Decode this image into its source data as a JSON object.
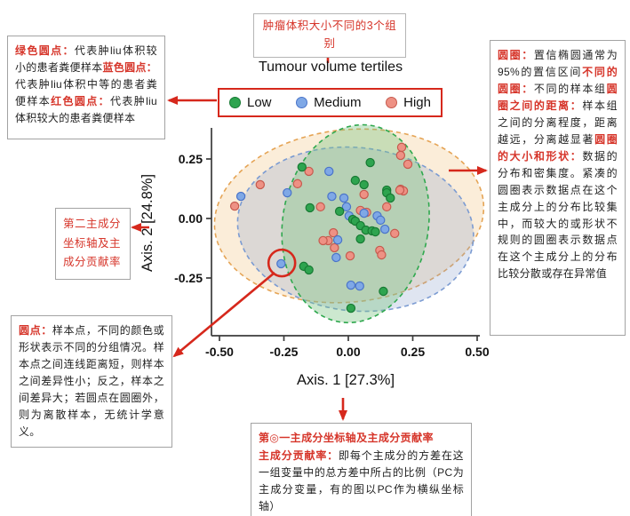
{
  "accent_color": "#d6281c",
  "box_border_color": "#a3a3a3",
  "annotations": {
    "top_center": {
      "text": "肿瘤体积大小不同的3个组别"
    },
    "top_left": {
      "segments": [
        {
          "label": "绿色圆点：",
          "text": "代表肿liu体积较小的患者粪便样本"
        },
        {
          "label": "蓝色圆点：",
          "text": "代表肿liu体积中等的患者粪便样本"
        },
        {
          "label": "红色圆点：",
          "text": "代表肿liu体积较大的患者粪便样本"
        }
      ]
    },
    "right": {
      "segments": [
        {
          "label": "圆圈：",
          "text": "置信椭圆通常为95%的置信区间"
        },
        {
          "label": "不同的圆圈：",
          "text": "不同的样本组"
        },
        {
          "label": "圆圈之间的距离：",
          "text": "样本组之间的分离程度，距离越远，分离越显著"
        },
        {
          "label": "圆圈的大小和形状：",
          "text": "数据的分布和密集度。紧凑的圆圈表示数据点在这个主成分上的分布比较集中，而较大的或形状不规则的圆圈表示数据点在这个主成分上的分布比较分散或存在异常值"
        }
      ]
    },
    "mid_left": {
      "text": "第二主成分坐标轴及主成分贡献率"
    },
    "bottom_left": {
      "segments": [
        {
          "label": "圆点：",
          "text": "样本点，不同的颜色或形状表示不同的分组情况。样本点之间连线距离短，则样本之间差异性小；反之，样本之间差异大；若圆点在圆圈外，则为离散样本，无统计学意义。"
        }
      ]
    },
    "bottom_center": {
      "heading": "第◎一主成分坐标轴及主成分贡献率",
      "segments": [
        {
          "label": "主成分贡献率：",
          "text": "即每个主成分的方差在这一组变量中的总方差中所占的比例（PC为主成分变量，有的图以PC作为横纵坐标轴）"
        }
      ]
    }
  },
  "legend": {
    "title": "Tumour volume tertiles",
    "items": [
      {
        "label": "Low",
        "color": "#2ea44f",
        "border": "#177a33"
      },
      {
        "label": "Medium",
        "color": "#7fa8e6",
        "border": "#4a74c9"
      },
      {
        "label": "High",
        "color": "#ee9184",
        "border": "#c65a4e"
      }
    ]
  },
  "chart_data": {
    "type": "scatter",
    "title": "Tumour volume tertiles",
    "xlabel": "Axis. 1 [27.3%]",
    "ylabel": "Axis. 2 [24.8%]",
    "xlim": [
      -0.53,
      0.51
    ],
    "ylim": [
      -0.49,
      0.38
    ],
    "x_ticks": [
      -0.5,
      -0.25,
      0.0,
      0.25,
      0.5
    ],
    "y_ticks": [
      0.25,
      0.0,
      -0.25
    ],
    "x_tick_labels": [
      "-0.50",
      "-0.25",
      "0.00",
      "0.25",
      "0.50"
    ],
    "y_tick_labels": [
      "0.25",
      "0.00",
      "-0.25"
    ],
    "grid": false,
    "legend_position": "top",
    "series": [
      {
        "name": "High",
        "color": "#ee9184",
        "border": "#c65a4e",
        "points": [
          [
            -0.441,
            0.052
          ],
          [
            -0.342,
            0.142
          ],
          [
            -0.153,
            0.198
          ],
          [
            -0.197,
            0.146
          ],
          [
            0.207,
            0.299
          ],
          [
            0.203,
            0.265
          ],
          [
            0.231,
            0.228
          ],
          [
            0.203,
            0.123
          ],
          [
            0.214,
            0.116
          ],
          [
            0.061,
            0.101
          ],
          [
            0.2,
            0.119
          ],
          [
            -0.108,
            0.049
          ],
          [
            0.047,
            0.034
          ],
          [
            0.071,
            0.026
          ],
          [
            0.149,
            0.049
          ],
          [
            0.18,
            -0.063
          ],
          [
            -0.058,
            -0.06
          ],
          [
            -0.078,
            -0.093
          ],
          [
            -0.098,
            -0.093
          ],
          [
            -0.054,
            -0.123
          ],
          [
            0.007,
            -0.157
          ],
          [
            0.122,
            -0.134
          ],
          [
            0.129,
            -0.153
          ]
        ]
      },
      {
        "name": "Medium",
        "color": "#7fa8e6",
        "border": "#4a74c9",
        "points": [
          [
            -0.417,
            0.093
          ],
          [
            -0.237,
            0.108
          ],
          [
            -0.075,
            0.198
          ],
          [
            -0.064,
            0.093
          ],
          [
            -0.017,
            0.086
          ],
          [
            -0.007,
            0.049
          ],
          [
            0.003,
            0.011
          ],
          [
            0.061,
            0.022
          ],
          [
            0.112,
            0.011
          ],
          [
            0.125,
            -0.007
          ],
          [
            0.142,
            -0.045
          ],
          [
            -0.041,
            -0.09
          ],
          [
            -0.047,
            -0.164
          ],
          [
            -0.261,
            -0.19
          ],
          [
            0.01,
            -0.28
          ],
          [
            0.044,
            -0.284
          ]
        ]
      },
      {
        "name": "Low",
        "color": "#2ea44f",
        "border": "#177a33",
        "points": [
          [
            -0.18,
            0.216
          ],
          [
            0.027,
            0.16
          ],
          [
            0.061,
            0.142
          ],
          [
            0.149,
            0.119
          ],
          [
            0.085,
            0.235
          ],
          [
            0.149,
            0.108
          ],
          [
            -0.034,
            0.03
          ],
          [
            0.017,
            -0.004
          ],
          [
            0.027,
            -0.011
          ],
          [
            0.047,
            -0.03
          ],
          [
            0.068,
            -0.049
          ],
          [
            0.092,
            -0.052
          ],
          [
            0.105,
            -0.056
          ],
          [
            0.047,
            -0.086
          ],
          [
            0.163,
            0.086
          ],
          [
            -0.173,
            -0.201
          ],
          [
            -0.153,
            -0.216
          ],
          [
            0.136,
            -0.306
          ],
          [
            0.01,
            -0.377
          ],
          [
            -0.149,
            0.045
          ]
        ]
      }
    ],
    "ellipses": [
      {
        "group": "High",
        "cx": 0.003,
        "cy": 0.011,
        "rx": 0.524,
        "ry": 0.362,
        "rotation": -6,
        "fill": "rgba(243,195,130,0.30)",
        "stroke": "#e5a455"
      },
      {
        "group": "Medium",
        "cx": 0.028,
        "cy": -0.045,
        "rx": 0.459,
        "ry": 0.343,
        "rotation": 6,
        "fill": "rgba(140,160,205,0.28)",
        "stroke": "#7b9bd2"
      },
      {
        "group": "Low",
        "cx": 0.028,
        "cy": -0.022,
        "rx": 0.283,
        "ry": 0.418,
        "rotation": 9,
        "fill": "rgba(120,195,130,0.38)",
        "stroke": "#2fa84e"
      }
    ],
    "highlight_circle": {
      "x": -0.258,
      "y": -0.187,
      "radius_px": 15
    }
  },
  "arrows": [
    {
      "name": "title-to-top-box",
      "from": [
        369,
        71
      ],
      "to": [
        369,
        46
      ]
    },
    {
      "name": "legend-to-top-left-box",
      "from": [
        244,
        113
      ],
      "to": [
        190,
        113
      ]
    },
    {
      "name": "ellipse-to-right-box",
      "from": [
        505,
        192
      ],
      "to": [
        547,
        192
      ]
    },
    {
      "name": "y-axis-to-mid-left-box",
      "from": [
        168,
        256
      ],
      "to": [
        149,
        256
      ]
    },
    {
      "name": "circle-to-bottom-left-box",
      "from": [
        309,
        307
      ],
      "to": [
        196,
        401
      ]
    },
    {
      "name": "x-axis-to-bottom-box",
      "from": [
        386,
        448
      ],
      "to": [
        386,
        472
      ]
    }
  ]
}
